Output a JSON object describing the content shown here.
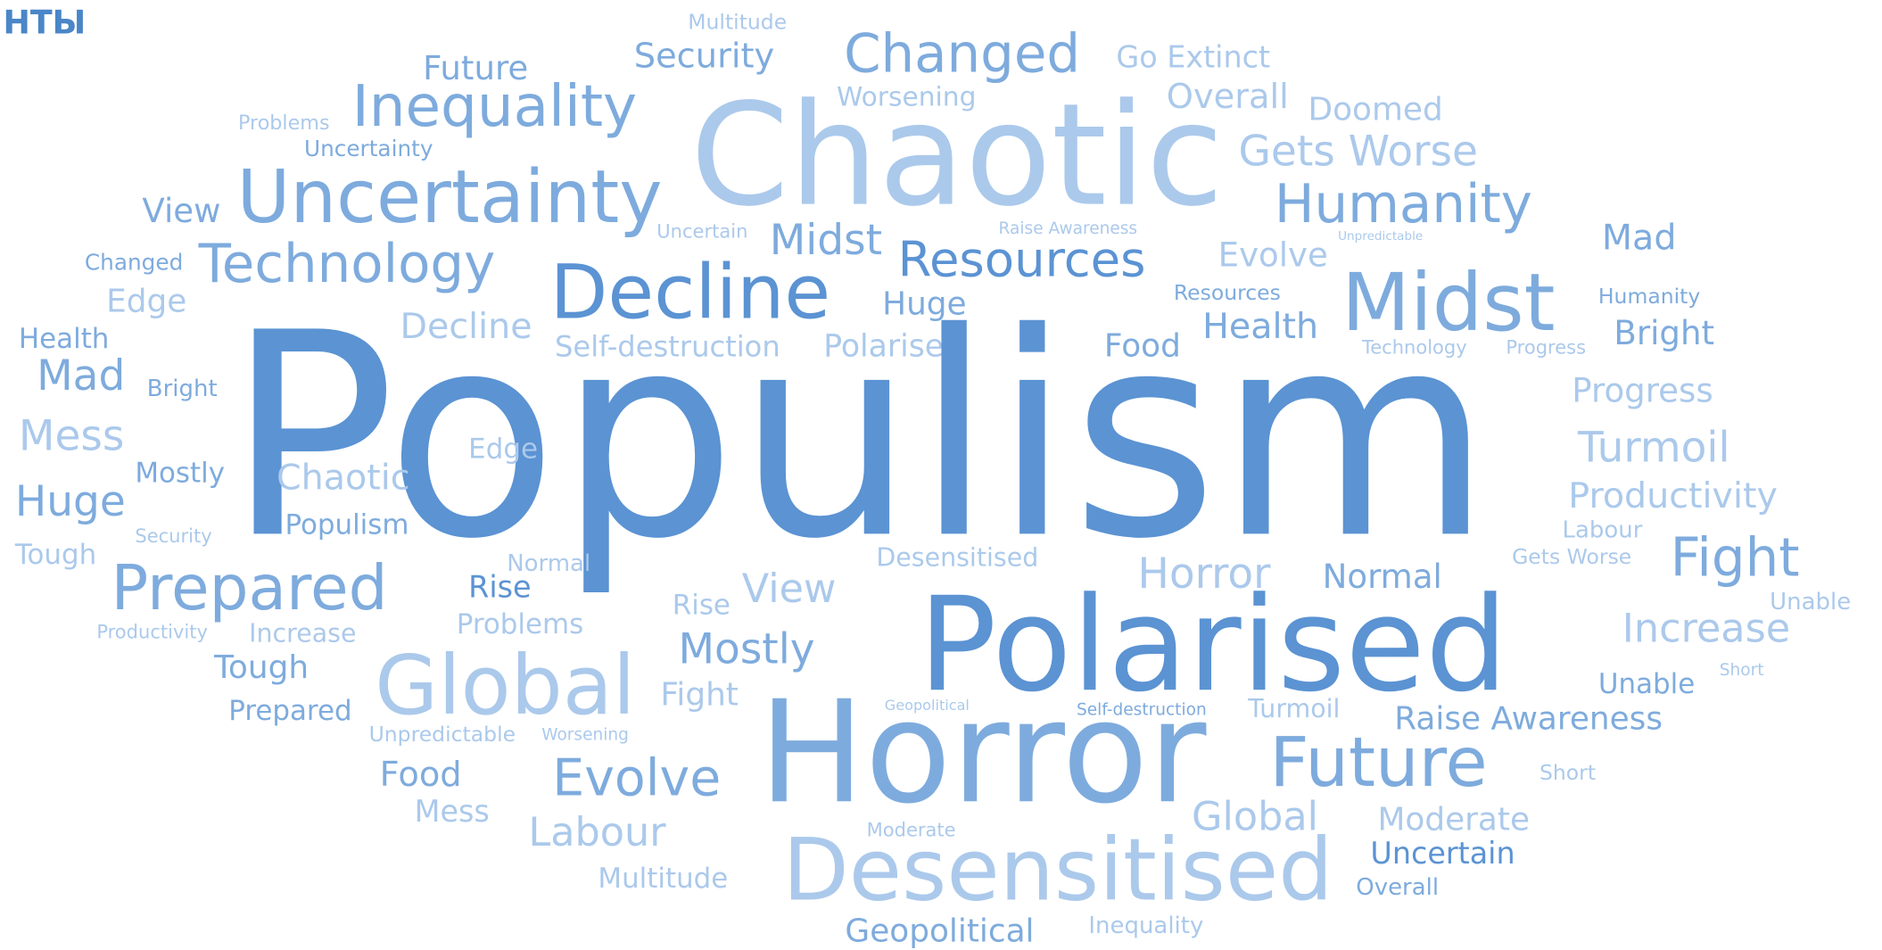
{
  "header": {
    "title": "НТЫ"
  },
  "words": [
    "Multitude",
    "Future",
    "Security",
    "Changed",
    "Go Extinct",
    "Inequality",
    "Problems",
    "Worsening",
    "Overall",
    "Doomed",
    "Uncertainty",
    "Chaotic",
    "Gets Worse",
    "Uncertainty",
    "View",
    "Humanity",
    "Uncertain",
    "Raise Awareness",
    "Unpredictable",
    "Midst",
    "Mad",
    "Changed",
    "Technology",
    "Resources",
    "Evolve",
    "Decline",
    "Midst",
    "Humanity",
    "Edge",
    "Huge",
    "Resources",
    "Health",
    "Decline",
    "Health",
    "Bright",
    "Self-destruction",
    "Polarised",
    "Food",
    "Technology",
    "Progress",
    "Populism",
    "Mad",
    "Bright",
    "Progress",
    "Mess",
    "Edge",
    "Turmoil",
    "Mostly",
    "Chaotic",
    "Huge",
    "Productivity",
    "Populism",
    "Security",
    "Labour",
    "Tough",
    "Normal",
    "Desensitised",
    "Horror",
    "Normal",
    "Gets Worse",
    "Fight",
    "Rise",
    "Prepared",
    "View",
    "Unable",
    "Rise",
    "Polarised",
    "Problems",
    "Productivity",
    "Increase",
    "Increase",
    "Mostly",
    "Tough",
    "Global",
    "Unable",
    "Short",
    "Fight",
    "Geopolitical",
    "Self-destruction",
    "Turmoil",
    "Prepared",
    "Raise Awareness",
    "Unpredictable",
    "Worsening",
    "Horror",
    "Future",
    "Short",
    "Food",
    "Evolve",
    "Mess",
    "Global",
    "Moderate",
    "Moderate",
    "Labour",
    "Desensitised",
    "Uncertain",
    "Multitude",
    "Overall",
    "Geopolitical",
    "Inequality"
  ]
}
